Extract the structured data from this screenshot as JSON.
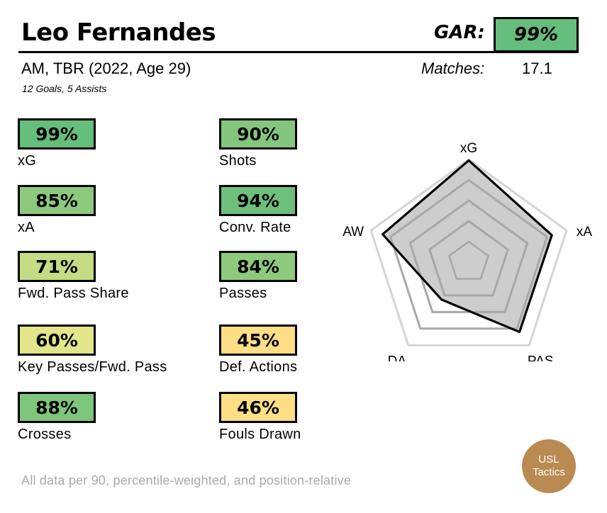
{
  "player": {
    "name": "Leo Fernandes",
    "subtitle": "AM, TBR (2022, Age 29)",
    "season_stats": "12 Goals,  5 Assists"
  },
  "gar": {
    "label": "GAR:",
    "value": "99%",
    "color": "#65be7b"
  },
  "matches": {
    "label": "Matches:",
    "value": "17.1"
  },
  "stats_left": [
    {
      "value": "99%",
      "label": "xG",
      "color": "#65be7b"
    },
    {
      "value": "85%",
      "label": "xA",
      "color": "#8cc97d"
    },
    {
      "value": "71%",
      "label": "Fwd. Pass Share",
      "color": "#c4dc83"
    },
    {
      "value": "60%",
      "label": "Key Passes/Fwd. Pass",
      "color": "#e3e58a"
    },
    {
      "value": "88%",
      "label": "Crosses",
      "color": "#7ec67c"
    }
  ],
  "stats_right": [
    {
      "value": "90%",
      "label": "Shots",
      "color": "#84c77c"
    },
    {
      "value": "94%",
      "label": "Conv. Rate",
      "color": "#6dc07b"
    },
    {
      "value": "84%",
      "label": "Passes",
      "color": "#8ec97c"
    },
    {
      "value": "45%",
      "label": "Def. Actions",
      "color": "#fede86"
    },
    {
      "value": "46%",
      "label": "Fouls Drawn",
      "color": "#fedf86"
    }
  ],
  "chart_data": {
    "type": "radar",
    "axes": [
      "xG",
      "xA",
      "PAS",
      "DA",
      "AW"
    ],
    "values": [
      0.99,
      0.85,
      0.84,
      0.45,
      0.88
    ],
    "range": [
      0,
      1
    ],
    "grid_levels": [
      0.2,
      0.4,
      0.6,
      0.8,
      1.0
    ],
    "fill_color": "#c8c8c8",
    "line_color": "#000000",
    "grid_color": "#a8a8a8",
    "outer_grid_color": "#d4d4d4"
  },
  "footnote": "All data per 90, percentile-weighted, and position-relative",
  "logo": {
    "line1": "USL",
    "line2": "Tactics",
    "color": "#b98a52"
  }
}
